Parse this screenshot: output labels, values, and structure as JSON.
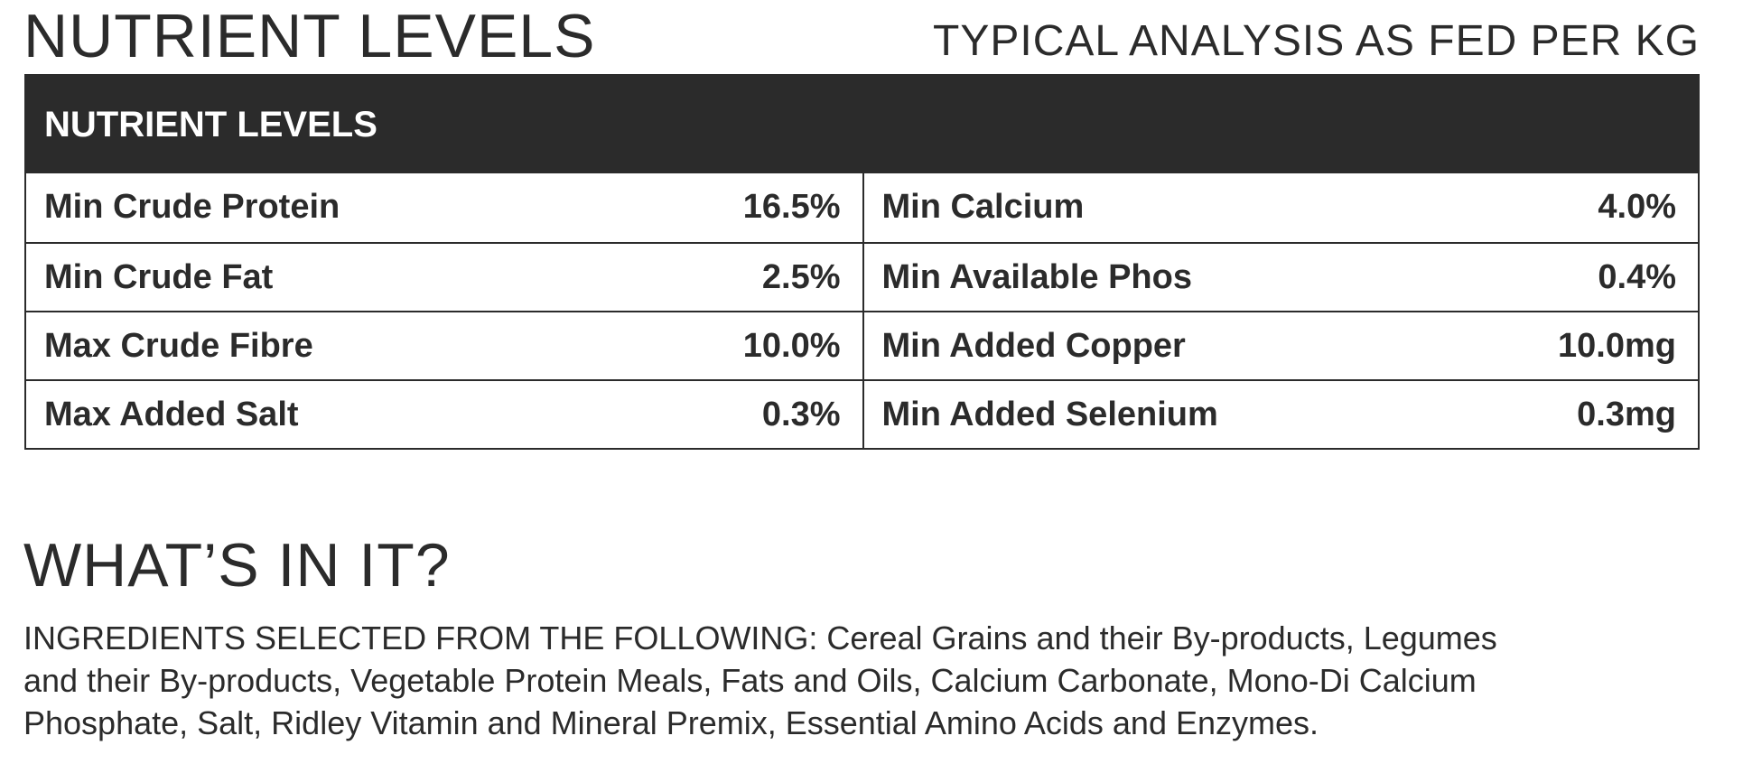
{
  "header": {
    "title": "NUTRIENT LEVELS",
    "subtitle": "TYPICAL ANALYSIS AS FED PER KG"
  },
  "table": {
    "header": "NUTRIENT LEVELS",
    "rows": [
      [
        "Min Crude Protein",
        "16.5%",
        "Min Calcium",
        "4.0%"
      ],
      [
        "Min Crude Fat",
        "2.5%",
        "Min Available Phos",
        "0.4%"
      ],
      [
        "Max Crude Fibre",
        "10.0%",
        "Min Added Copper",
        "10.0mg"
      ],
      [
        "Max Added Salt",
        "0.3%",
        "Min Added Selenium",
        "0.3mg"
      ]
    ]
  },
  "ingredients": {
    "title": "WHAT’S IN IT?",
    "lines": [
      "INGREDIENTS SELECTED FROM THE FOLLOWING: Cereal Grains and their By-products, Legumes",
      "and their By-products, Vegetable Protein Meals, Fats and Oils, Calcium Carbonate, Mono-Di Calcium",
      "Phosphate, Salt, Ridley Vitamin and Mineral Premix, Essential Amino Acids and Enzymes."
    ]
  }
}
